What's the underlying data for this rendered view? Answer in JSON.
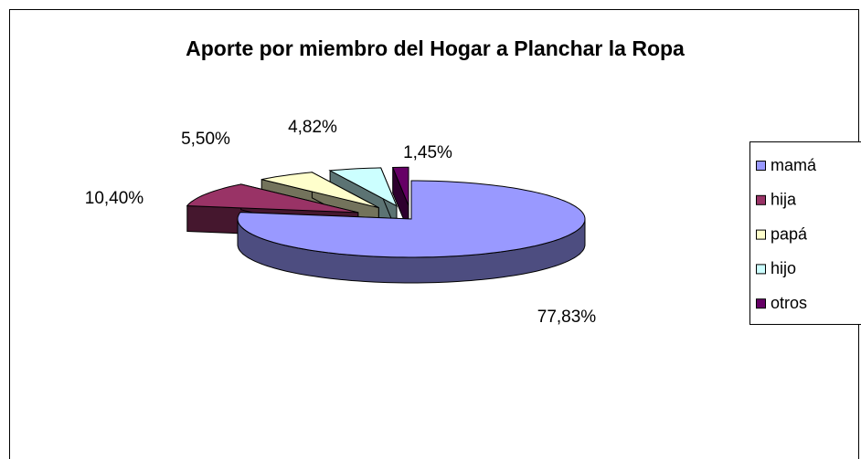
{
  "chart_data": {
    "type": "pie",
    "title": "Aporte por miembro del Hogar a Planchar la Ropa",
    "categories": [
      "mamá",
      "hija",
      "papá",
      "hijo",
      "otros"
    ],
    "values": [
      77.83,
      10.4,
      5.5,
      4.82,
      1.45
    ],
    "value_labels": [
      "77,83%",
      "10,40%",
      "5,50%",
      "4,82%",
      "1,45%"
    ],
    "colors": [
      "#9999ff",
      "#993366",
      "#ffffcc",
      "#ccffff",
      "#660066"
    ],
    "legend": "right"
  }
}
